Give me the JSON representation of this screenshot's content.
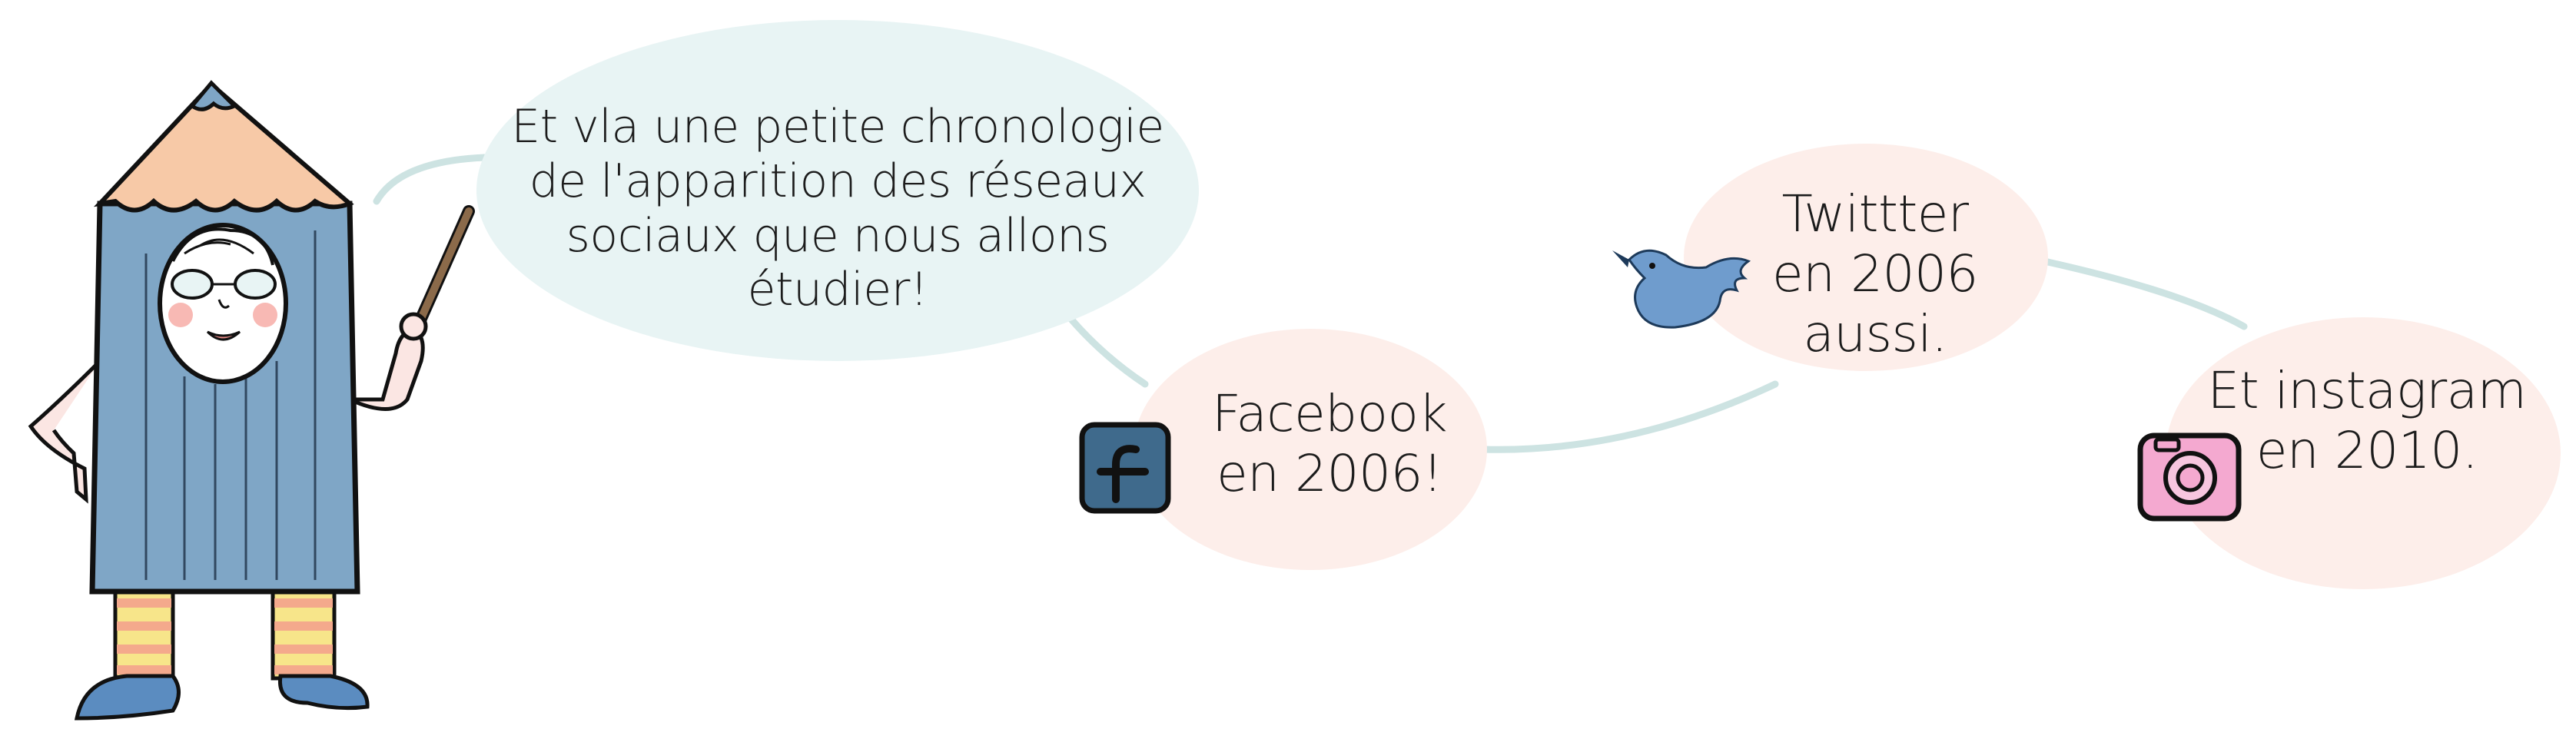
{
  "intro_bubble": {
    "lines": [
      "Et vla une petite chronologie",
      "de l'apparition des réseaux",
      "sociaux que nous allons",
      "étudier!"
    ]
  },
  "timeline": [
    {
      "icon": "facebook-icon",
      "lines": [
        "Facebook",
        "en 2006!"
      ]
    },
    {
      "icon": "twitter-bird-icon",
      "lines": [
        "Twittter",
        "en 2006",
        "aussi."
      ]
    },
    {
      "icon": "instagram-icon",
      "lines": [
        "Et instagram",
        "en 2010."
      ]
    }
  ],
  "colors": {
    "intro_bubble": "#e8f4f4",
    "timeline_bubble": "#fdeeea",
    "connector": "#cde3e2",
    "pencil_body": "#7fa6c6",
    "pencil_tip": "#f7c9a7",
    "facebook": "#3f6a8c",
    "twitter": "#6f9ccd",
    "instagram": "#f4a9d0"
  }
}
